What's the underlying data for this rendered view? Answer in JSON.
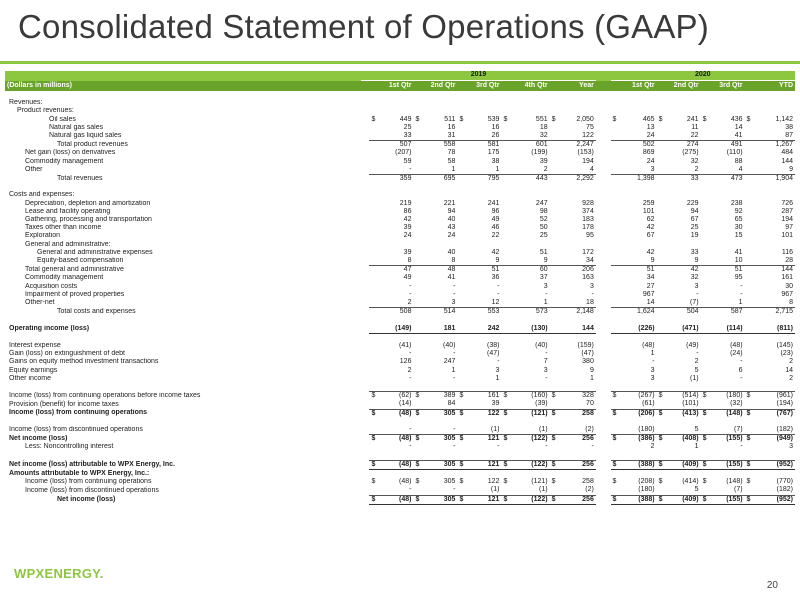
{
  "title": "Consolidated Statement of Operations (GAAP)",
  "header": {
    "year_2019": "2019",
    "year_2020": "2020",
    "unit_label": "(Dollars in millions)",
    "cols_2019": [
      "1st Qtr",
      "2nd Qtr",
      "3rd Qtr",
      "4th Qtr",
      "Year"
    ],
    "cols_2020": [
      "1st Qtr",
      "2nd Qtr",
      "3rd Qtr",
      "YTD"
    ]
  },
  "rows": [
    {
      "label": "",
      "blank": true
    },
    {
      "label": "Revenues:",
      "indent": 0
    },
    {
      "label": "Product revenues:",
      "indent": 1
    },
    {
      "label": "Oil sales",
      "indent": 4,
      "v19": [
        "449",
        "511",
        "539",
        "551",
        "2,050"
      ],
      "v20": [
        "465",
        "241",
        "436",
        "1,142"
      ],
      "cur": true
    },
    {
      "label": "Natural gas sales",
      "indent": 4,
      "v19": [
        "25",
        "16",
        "16",
        "18",
        "75"
      ],
      "v20": [
        "13",
        "11",
        "14",
        "38"
      ]
    },
    {
      "label": "Natural gas liquid sales",
      "indent": 4,
      "v19": [
        "33",
        "31",
        "26",
        "32",
        "122"
      ],
      "v20": [
        "24",
        "22",
        "41",
        "87"
      ]
    },
    {
      "label": "Total product revenues",
      "indent": 5,
      "v19": [
        "507",
        "558",
        "581",
        "601",
        "2,247"
      ],
      "v20": [
        "502",
        "274",
        "491",
        "1,267"
      ],
      "topline": true
    },
    {
      "label": "Net gain (loss) on derivatives",
      "indent": 2,
      "v19": [
        "(207)",
        "78",
        "175",
        "(199)",
        "(153)"
      ],
      "v20": [
        "869",
        "(275)",
        "(110)",
        "484"
      ]
    },
    {
      "label": "Commodity management",
      "indent": 2,
      "v19": [
        "59",
        "58",
        "38",
        "39",
        "194"
      ],
      "v20": [
        "24",
        "32",
        "88",
        "144"
      ]
    },
    {
      "label": "Other",
      "indent": 2,
      "v19": [
        "-",
        "1",
        "1",
        "2",
        "4"
      ],
      "v20": [
        "3",
        "2",
        "4",
        "9"
      ]
    },
    {
      "label": "Total revenues",
      "indent": 5,
      "v19": [
        "359",
        "695",
        "795",
        "443",
        "2,292"
      ],
      "v20": [
        "1,398",
        "33",
        "473",
        "1,904"
      ],
      "topline": true
    },
    {
      "label": "",
      "blank": true
    },
    {
      "label": "Costs and expenses:",
      "indent": 0
    },
    {
      "label": "Depreciation, depletion and amortization",
      "indent": 2,
      "v19": [
        "219",
        "221",
        "241",
        "247",
        "928"
      ],
      "v20": [
        "259",
        "229",
        "238",
        "726"
      ]
    },
    {
      "label": "Lease and facility operating",
      "indent": 2,
      "v19": [
        "86",
        "94",
        "96",
        "98",
        "374"
      ],
      "v20": [
        "101",
        "94",
        "92",
        "287"
      ]
    },
    {
      "label": "Gathering, processing and transportation",
      "indent": 2,
      "v19": [
        "42",
        "40",
        "49",
        "52",
        "183"
      ],
      "v20": [
        "62",
        "67",
        "65",
        "194"
      ]
    },
    {
      "label": "Taxes other than income",
      "indent": 2,
      "v19": [
        "39",
        "43",
        "46",
        "50",
        "178"
      ],
      "v20": [
        "42",
        "25",
        "30",
        "97"
      ]
    },
    {
      "label": "Exploration",
      "indent": 2,
      "v19": [
        "24",
        "24",
        "22",
        "25",
        "95"
      ],
      "v20": [
        "67",
        "19",
        "15",
        "101"
      ]
    },
    {
      "label": "General and administrative:",
      "indent": 2
    },
    {
      "label": "General and administrative expenses",
      "indent": 3,
      "v19": [
        "39",
        "40",
        "42",
        "51",
        "172"
      ],
      "v20": [
        "42",
        "33",
        "41",
        "116"
      ]
    },
    {
      "label": "Equity-based compensation",
      "indent": 3,
      "v19": [
        "8",
        "8",
        "9",
        "9",
        "34"
      ],
      "v20": [
        "9",
        "9",
        "10",
        "28"
      ]
    },
    {
      "label": "Total general and administrative",
      "indent": 2,
      "v19": [
        "47",
        "48",
        "51",
        "60",
        "206"
      ],
      "v20": [
        "51",
        "42",
        "51",
        "144"
      ],
      "topline": true
    },
    {
      "label": "Commodity management",
      "indent": 2,
      "v19": [
        "49",
        "41",
        "36",
        "37",
        "163"
      ],
      "v20": [
        "34",
        "32",
        "95",
        "161"
      ]
    },
    {
      "label": "Acquisition costs",
      "indent": 2,
      "v19": [
        "-",
        "-",
        "-",
        "3",
        "3"
      ],
      "v20": [
        "27",
        "3",
        "-",
        "30"
      ]
    },
    {
      "label": "Impairment of proved properties",
      "indent": 2,
      "v19": [
        "-",
        "-",
        "-",
        "-",
        "-"
      ],
      "v20": [
        "967",
        "-",
        "-",
        "967"
      ]
    },
    {
      "label": "Other-net",
      "indent": 2,
      "v19": [
        "2",
        "3",
        "12",
        "1",
        "18"
      ],
      "v20": [
        "14",
        "(7)",
        "1",
        "8"
      ]
    },
    {
      "label": "Total costs and expenses",
      "indent": 5,
      "v19": [
        "508",
        "514",
        "553",
        "573",
        "2,148"
      ],
      "v20": [
        "1,624",
        "504",
        "587",
        "2,715"
      ],
      "topline": true
    },
    {
      "label": "",
      "blank": true
    },
    {
      "label": "Operating income (loss)",
      "indent": 0,
      "bold": true,
      "v19": [
        "(149)",
        "181",
        "242",
        "(130)",
        "144"
      ],
      "v20": [
        "(226)",
        "(471)",
        "(114)",
        "(811)"
      ],
      "dbl": true
    },
    {
      "label": "",
      "blank": true
    },
    {
      "label": "Interest expense",
      "indent": 0,
      "v19": [
        "(41)",
        "(40)",
        "(38)",
        "(40)",
        "(159)"
      ],
      "v20": [
        "(48)",
        "(49)",
        "(48)",
        "(145)"
      ]
    },
    {
      "label": "Gain (loss) on extinguishment of debt",
      "indent": 0,
      "v19": [
        "-",
        "-",
        "(47)",
        "-",
        "(47)"
      ],
      "v20": [
        "1",
        "-",
        "(24)",
        "(23)"
      ]
    },
    {
      "label": "Gains on equity method investment transactions",
      "indent": 0,
      "v19": [
        "126",
        "247",
        "-",
        "7",
        "380"
      ],
      "v20": [
        "-",
        "2",
        "-",
        "2"
      ]
    },
    {
      "label": "Equity earnings",
      "indent": 0,
      "v19": [
        "2",
        "1",
        "3",
        "3",
        "9"
      ],
      "v20": [
        "3",
        "5",
        "6",
        "14"
      ]
    },
    {
      "label": "Other income",
      "indent": 0,
      "v19": [
        "-",
        "-",
        "1",
        "-",
        "1"
      ],
      "v20": [
        "3",
        "(1)",
        "-",
        "2"
      ]
    },
    {
      "label": "",
      "blank": true
    },
    {
      "label": "Income (loss) from continuing operations before income taxes",
      "indent": 0,
      "v19": [
        "(62)",
        "389",
        "161",
        "(160)",
        "328"
      ],
      "v20": [
        "(267)",
        "(514)",
        "(180)",
        "(961)"
      ],
      "cur": true,
      "topline": true
    },
    {
      "label": "Provision (benefit) for income taxes",
      "indent": 0,
      "v19": [
        "(14)",
        "84",
        "39",
        "(39)",
        "70"
      ],
      "v20": [
        "(61)",
        "(101)",
        "(32)",
        "(194)"
      ]
    },
    {
      "label": "Income (loss) from continuing operations",
      "indent": 0,
      "bold": true,
      "v19": [
        "(48)",
        "305",
        "122",
        "(121)",
        "258"
      ],
      "v20": [
        "(206)",
        "(413)",
        "(148)",
        "(767)"
      ],
      "cur": true,
      "topline": true
    },
    {
      "label": "",
      "blank": true
    },
    {
      "label": "Income (loss) from discontinued operations",
      "indent": 0,
      "v19": [
        "-",
        "-",
        "(1)",
        "(1)",
        "(2)"
      ],
      "v20": [
        "(180)",
        "5",
        "(7)",
        "(182)"
      ]
    },
    {
      "label": "Net income (loss)",
      "indent": 0,
      "bold": true,
      "v19": [
        "(48)",
        "305",
        "121",
        "(122)",
        "256"
      ],
      "v20": [
        "(386)",
        "(408)",
        "(155)",
        "(949)"
      ],
      "cur": true,
      "topline": true
    },
    {
      "label": "Less: Noncontrolling interest",
      "indent": 2,
      "v19": [
        "-",
        "-",
        "-",
        "-",
        "-"
      ],
      "v20": [
        "2",
        "1",
        "-",
        "3"
      ]
    },
    {
      "label": "",
      "blank": true
    },
    {
      "label": "Net income (loss) attributable to WPX Energy, Inc.",
      "indent": 0,
      "bold": true,
      "v19": [
        "(48)",
        "305",
        "121",
        "(122)",
        "256"
      ],
      "v20": [
        "(388)",
        "(409)",
        "(155)",
        "(952)"
      ],
      "cur": true,
      "topline": true,
      "dbl": true
    },
    {
      "label": "Amounts attributable to WPX Energy, Inc.:",
      "indent": 0,
      "bold": true
    },
    {
      "label": "Income (loss) from continuing operations",
      "indent": 2,
      "v19": [
        "(48)",
        "305",
        "122",
        "(121)",
        "258"
      ],
      "v20": [
        "(208)",
        "(414)",
        "(148)",
        "(770)"
      ],
      "cur": true
    },
    {
      "label": "Income (loss) from discontinued operations",
      "indent": 2,
      "v19": [
        "-",
        "-",
        "(1)",
        "(1)",
        "(2)"
      ],
      "v20": [
        "(180)",
        "5",
        "(7)",
        "(182)"
      ]
    },
    {
      "label": "Net income (loss)",
      "indent": 5,
      "bold": true,
      "v19": [
        "(48)",
        "305",
        "121",
        "(122)",
        "256"
      ],
      "v20": [
        "(388)",
        "(409)",
        "(155)",
        "(952)"
      ],
      "cur": true,
      "topline": true,
      "dbl": true
    }
  ],
  "currency_symbol": "$",
  "footer": {
    "logo_text": "WPXENERGY.",
    "page_number": "20"
  },
  "colors": {
    "accent": "#8dc63f",
    "header_dark": "#6aa32a"
  }
}
